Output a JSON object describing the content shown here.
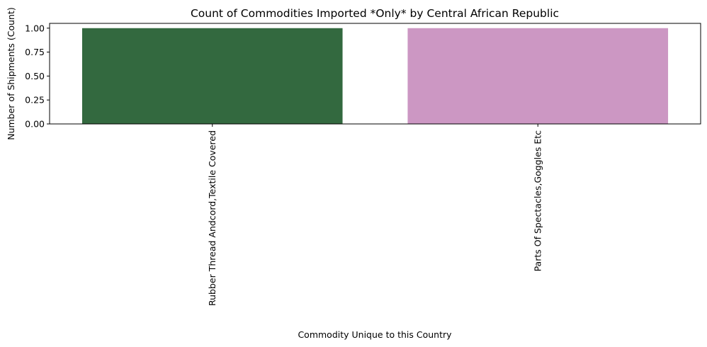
{
  "chart_data": {
    "type": "bar",
    "title": "Count of Commodities Imported *Only* by Central African Republic",
    "xlabel": "Commodity Unique to this Country",
    "ylabel": "Number of Shipments (Count)",
    "categories": [
      "Rubber Thread Andcord,Textile Covered",
      "Parts Of Spectacles,Goggles Etc"
    ],
    "values": [
      1,
      1
    ],
    "colors": [
      "#33693f",
      "#cc97c3"
    ],
    "ylim": [
      0,
      1.05
    ],
    "yticks": [
      0.0,
      0.25,
      0.5,
      0.75,
      1.0
    ],
    "ytick_labels": [
      "0.00",
      "0.25",
      "0.50",
      "0.75",
      "1.00"
    ],
    "grid": false,
    "legend": "none"
  }
}
